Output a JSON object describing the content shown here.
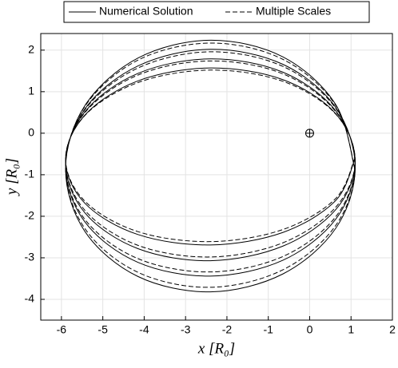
{
  "chart_data": {
    "type": "line",
    "xlabel": "x [R₀]",
    "ylabel": "y [R₀]",
    "xlim": [
      -6.5,
      2
    ],
    "ylim": [
      -4.5,
      2.4
    ],
    "xticks": [
      -6,
      -5,
      -4,
      -3,
      -2,
      -1,
      0,
      1,
      2
    ],
    "yticks": [
      -4,
      -3,
      -2,
      -1,
      0,
      1,
      2
    ],
    "grid": true,
    "legend": "north-outside",
    "marker": {
      "x": 0,
      "y": 0
    },
    "x": [
      1.1,
      0.63,
      -0.65,
      -2.4,
      -4.15,
      -5.43,
      -5.9,
      -5.43,
      -4.15,
      -2.4,
      -0.65,
      0.63,
      1.1,
      0.63,
      -0.65,
      -2.4,
      -4.15,
      -5.43,
      -5.9,
      -5.43,
      -4.15,
      -2.4,
      -0.65,
      0.63,
      1.1,
      0.63,
      -0.65,
      -2.4,
      -4.15,
      -5.43,
      -5.9,
      -5.43,
      -4.15,
      -2.4,
      -0.65,
      0.63,
      1.1,
      0.63,
      -0.65,
      -2.4,
      -4.15,
      -5.43,
      -5.9,
      -5.43,
      -4.15,
      -2.4,
      -0.65,
      0.63,
      1.1
    ],
    "series": [
      {
        "name": "Numerical Solution",
        "color": "#000000",
        "dash": "solid",
        "values": [
          -0.9,
          0.69,
          1.84,
          2.24,
          1.81,
          0.67,
          -0.86,
          -2.37,
          -3.45,
          -3.82,
          -3.39,
          -2.29,
          -0.83,
          0.62,
          1.66,
          2.02,
          1.62,
          0.59,
          -0.79,
          -2.14,
          -3.11,
          -3.44,
          -3.06,
          -2.07,
          -0.75,
          0.54,
          1.47,
          1.79,
          1.44,
          0.52,
          -0.71,
          -1.92,
          -2.78,
          -3.07,
          -2.72,
          -1.84,
          -0.68,
          0.47,
          1.29,
          1.57,
          1.26,
          0.44,
          -0.64,
          -1.69,
          -2.44,
          -2.69,
          -2.39,
          -1.62,
          -0.6
        ]
      },
      {
        "name": "Multiple Scales",
        "color": "#000000",
        "dash": "dashed",
        "values": [
          -0.87,
          0.67,
          1.78,
          2.17,
          1.76,
          0.65,
          -0.83,
          -2.3,
          -3.35,
          -3.71,
          -3.29,
          -2.22,
          -0.81,
          0.6,
          1.61,
          1.96,
          1.57,
          0.57,
          -0.77,
          -2.08,
          -3.02,
          -3.34,
          -2.97,
          -2.01,
          -0.73,
          0.52,
          1.43,
          1.74,
          1.4,
          0.5,
          -0.69,
          -1.86,
          -2.7,
          -2.98,
          -2.64,
          -1.78,
          -0.66,
          0.46,
          1.25,
          1.52,
          1.22,
          0.43,
          -0.62,
          -1.64,
          -2.37,
          -2.61,
          -2.32,
          -1.57,
          -0.58
        ]
      }
    ]
  }
}
